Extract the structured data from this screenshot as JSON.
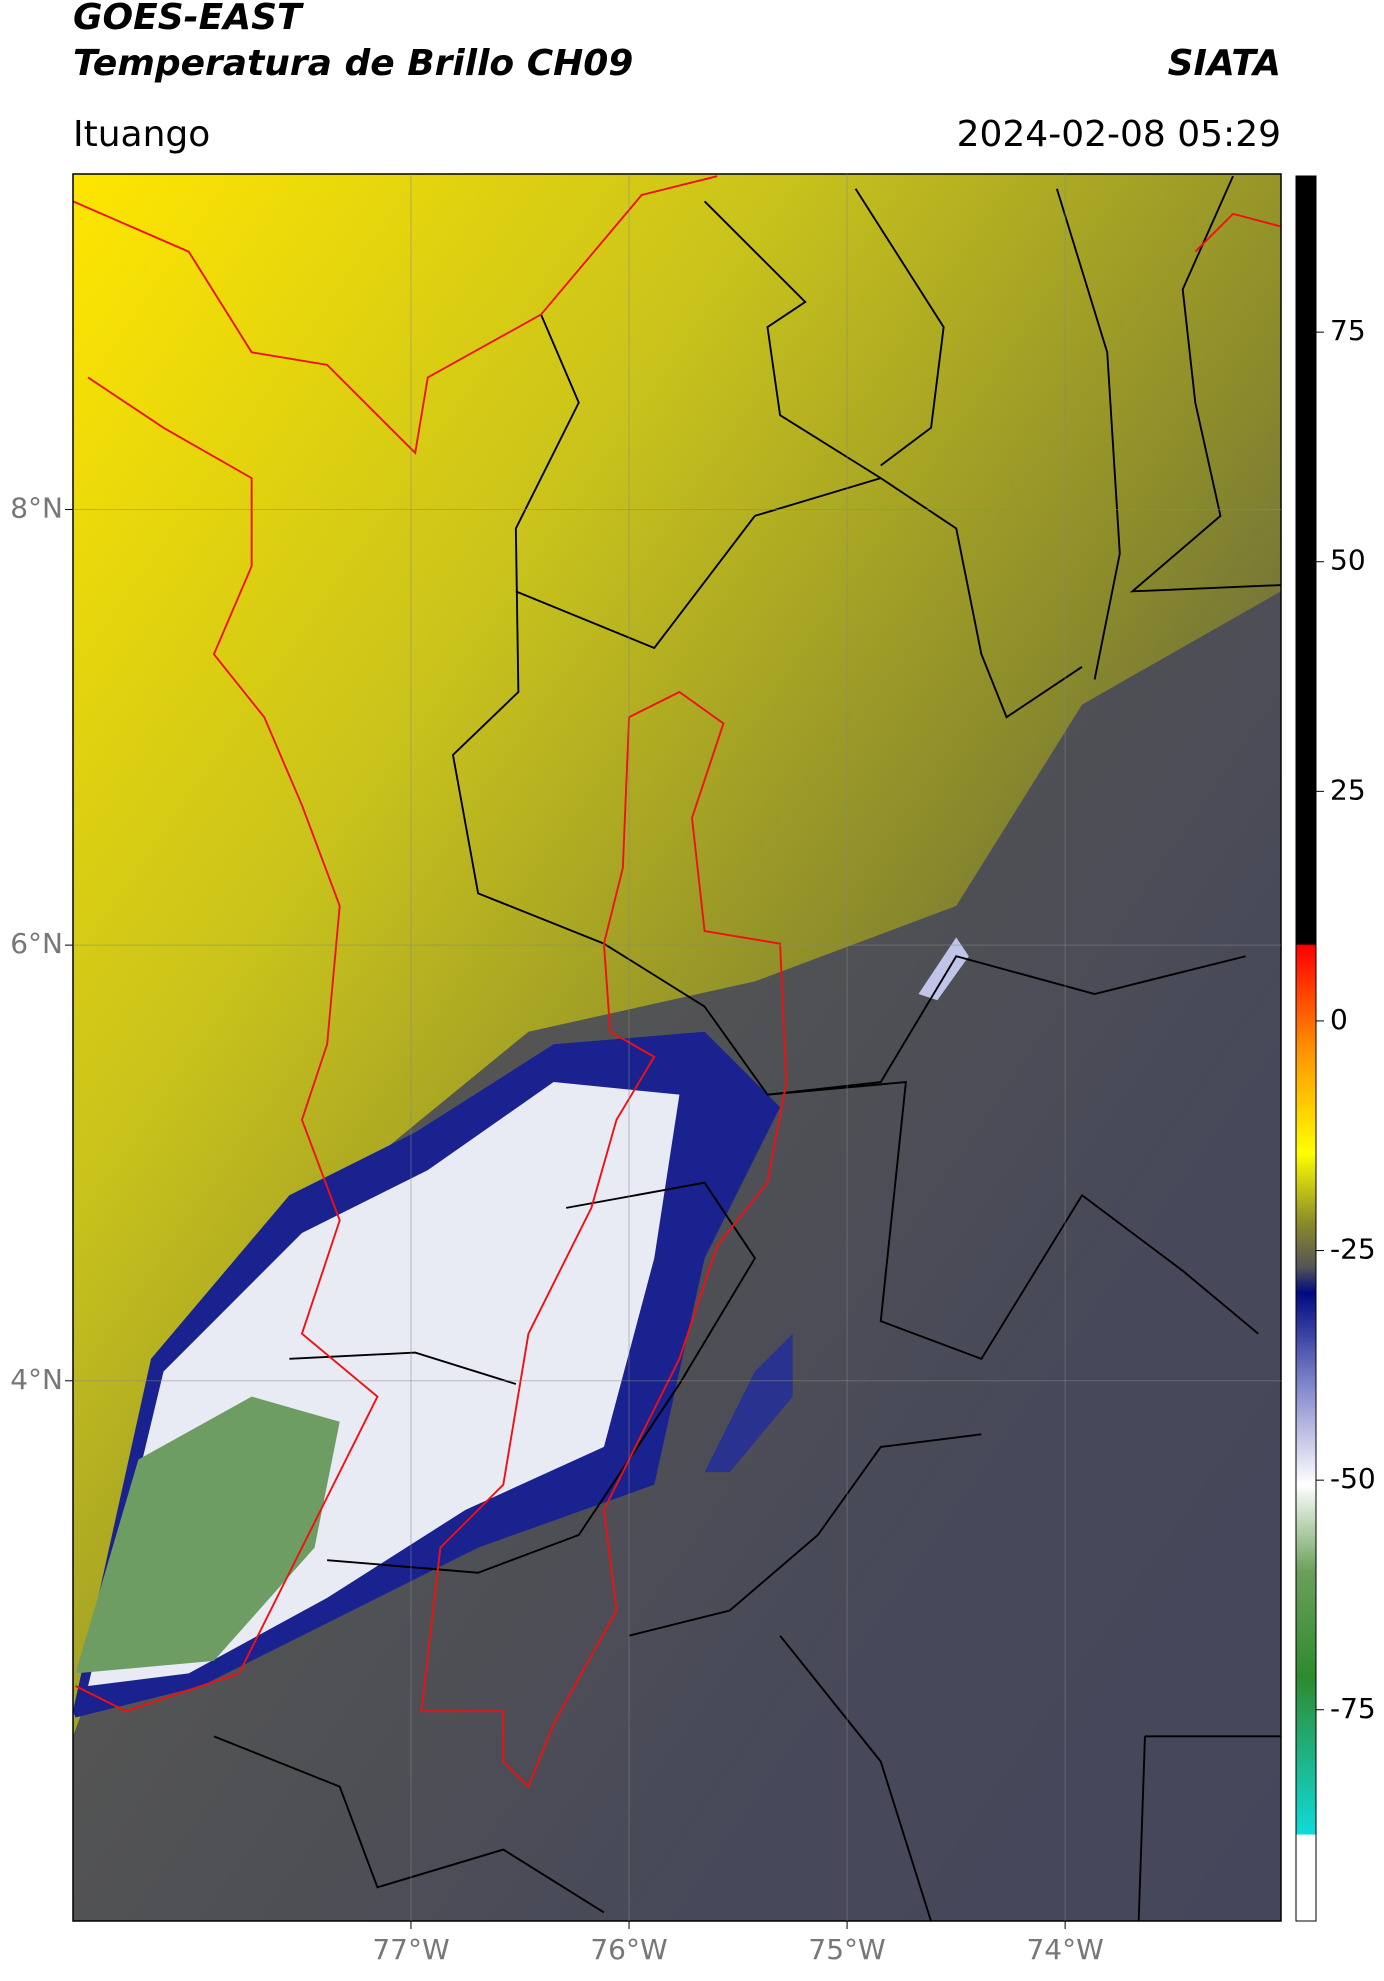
{
  "header": {
    "title": "GOES-EAST",
    "subtitle": "Temperatura de Brillo CH09",
    "agency": "SIATA",
    "location": "Ituango",
    "datetime": "2024-02-08 05:29"
  },
  "map": {
    "latlim": [
      1.52,
      9.54
    ],
    "lonlim": [
      -78.55,
      -73.01
    ],
    "lat_ticks": [
      {
        "value": 8,
        "label": "8°N"
      },
      {
        "value": 6,
        "label": "6°N"
      },
      {
        "value": 4,
        "label": "4°N"
      }
    ],
    "lon_ticks": [
      {
        "value": -77,
        "label": "77°W"
      },
      {
        "value": -76,
        "label": "76°W"
      },
      {
        "value": -75,
        "label": "75°W"
      },
      {
        "value": -74,
        "label": "74°W"
      }
    ],
    "grid": true
  },
  "colorbar": {
    "lim": [
      -98,
      92
    ],
    "ticks": [
      75,
      50,
      25,
      0,
      -25,
      -50,
      -75
    ]
  }
}
